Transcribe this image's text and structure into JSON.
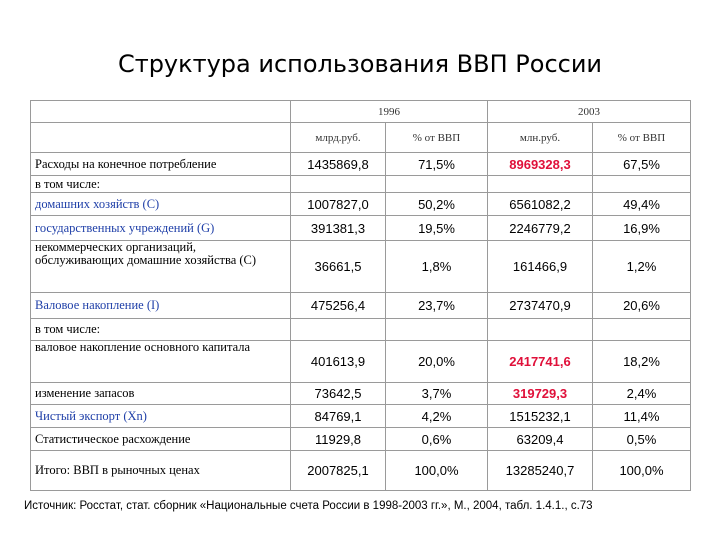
{
  "title": "Структура использования ВВП России",
  "table": {
    "years": [
      "1996",
      "2003"
    ],
    "units": [
      "млрд.руб.",
      "% от ВВП",
      "млн.руб.",
      "% от ВВП"
    ],
    "rows": [
      [
        "Расходы на конечное потребление",
        "1435869,8",
        "71,5%",
        "8969328,3",
        "67,5%"
      ],
      [
        "в том числе:"
      ],
      [
        "домашних хозяйств (С)",
        "1007827,0",
        "50,2%",
        "6561082,2",
        "49,4%"
      ],
      [
        "государственных учреждений (G)",
        "391381,3",
        "19,5%",
        "2246779,2",
        "16,9%"
      ],
      [
        "некоммерческих организаций, обслуживающих домашние хозяйства (С)",
        "36661,5",
        "1,8%",
        "161466,9",
        "1,2%"
      ],
      [
        "Валовое накопление (I)",
        "475256,4",
        "23,7%",
        "2737470,9",
        "20,6%"
      ],
      [
        "в том числе:"
      ],
      [
        "валовое накопление основного капитала",
        "401613,9",
        "20,0%",
        "2417741,6",
        "18,2%"
      ],
      [
        "изменение запасов",
        "73642,5",
        "3,7%",
        "319729,3",
        "2,4%"
      ],
      [
        "Чистый экспорт (Хn)",
        "84769,1",
        "4,2%",
        "1515232,1",
        "11,4%"
      ],
      [
        "Статистическое расхождение",
        "11929,8",
        "0,6%",
        "63209,4",
        "0,5%"
      ],
      [
        "Итого: ВВП в рыночных ценах",
        "2007825,1",
        "100,0%",
        "13285240,7",
        "100,0%"
      ]
    ]
  },
  "source": "Источник: Росстат, стат. сборник «Национальные счета России в 1998-2003 гг.», М., 2004, табл. 1.4.1., с.73"
}
